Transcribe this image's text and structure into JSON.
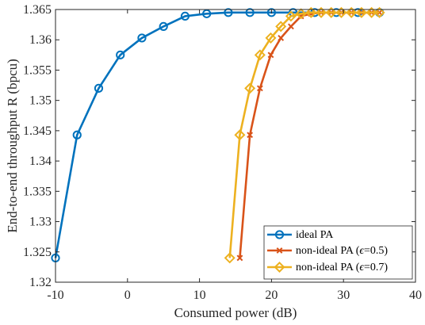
{
  "chart_data": {
    "type": "line",
    "xlabel": "Consumed power (dB)",
    "ylabel": "End-to-end throughput R (bpcu)",
    "xlim": [
      -10,
      40
    ],
    "ylim": [
      1.32,
      1.365
    ],
    "xticks": [
      -10,
      0,
      10,
      20,
      30,
      40
    ],
    "xtick_labels": [
      "-10",
      "0",
      "10",
      "20",
      "30",
      "40"
    ],
    "yticks": [
      1.32,
      1.325,
      1.33,
      1.335,
      1.34,
      1.345,
      1.35,
      1.355,
      1.36,
      1.365
    ],
    "ytick_labels": [
      "1.32",
      "1.325",
      "1.33",
      "1.335",
      "1.34",
      "1.345",
      "1.35",
      "1.355",
      "1.36",
      "1.365"
    ],
    "grid": false,
    "legend_position": "bottom-right",
    "legend_entries": [
      "ideal PA",
      "non-ideal PA (",
      "=0.5)",
      "non-ideal PA (",
      "=0.7)"
    ],
    "legend_symbol": "ϵ",
    "series": [
      {
        "name": "ideal PA",
        "color": "#0072bd",
        "marker": "circle",
        "x": [
          -10,
          -7,
          -4,
          -1,
          2,
          5,
          8,
          11,
          14,
          17,
          20,
          23,
          26,
          29,
          32,
          35
        ],
        "y": [
          1.324,
          1.3443,
          1.352,
          1.3575,
          1.3603,
          1.3622,
          1.3639,
          1.3643,
          1.3645,
          1.3645,
          1.3645,
          1.3645,
          1.3645,
          1.3645,
          1.3645,
          1.3645
        ]
      },
      {
        "name": "non-ideal PA (ϵ=0.5)",
        "color": "#d95319",
        "marker": "x",
        "x": [
          15.6,
          17.0,
          18.4,
          19.9,
          21.3,
          22.7,
          24.1,
          25.5,
          26.9,
          28.3,
          29.7,
          31.1,
          32.5,
          33.9,
          35.0
        ],
        "y": [
          1.324,
          1.3443,
          1.352,
          1.3575,
          1.3603,
          1.3622,
          1.3639,
          1.3643,
          1.3645,
          1.3645,
          1.3645,
          1.3645,
          1.3645,
          1.3645,
          1.3645
        ]
      },
      {
        "name": "non-ideal PA (ϵ=0.7)",
        "color": "#edb120",
        "marker": "diamond",
        "x": [
          14.2,
          15.6,
          17.0,
          18.4,
          19.9,
          21.3,
          22.7,
          24.1,
          25.5,
          26.9,
          28.3,
          29.7,
          31.1,
          32.5,
          33.9,
          35.0
        ],
        "y": [
          1.324,
          1.3443,
          1.352,
          1.3575,
          1.3603,
          1.3622,
          1.3639,
          1.3643,
          1.3645,
          1.3645,
          1.3645,
          1.3645,
          1.3645,
          1.3645,
          1.3645,
          1.3645
        ]
      }
    ]
  }
}
